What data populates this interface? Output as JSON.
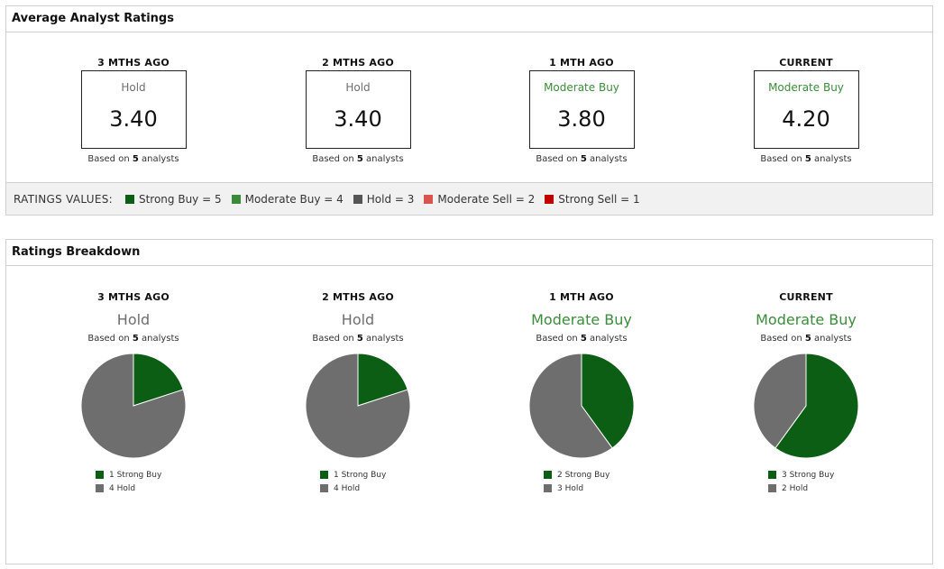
{
  "avg_panel": {
    "title": "Average Analyst Ratings",
    "periods": [
      {
        "label": "3 MTHS AGO",
        "rating": "Hold",
        "value": "3.40",
        "based_pre": "Based on",
        "count": "5",
        "based_post": "analysts",
        "color": "#6e6e6e"
      },
      {
        "label": "2 MTHS AGO",
        "rating": "Hold",
        "value": "3.40",
        "based_pre": "Based on",
        "count": "5",
        "based_post": "analysts",
        "color": "#6e6e6e"
      },
      {
        "label": "1 MTH AGO",
        "rating": "Moderate Buy",
        "value": "3.80",
        "based_pre": "Based on",
        "count": "5",
        "based_post": "analysts",
        "color": "#3b8c3b"
      },
      {
        "label": "CURRENT",
        "rating": "Moderate Buy",
        "value": "4.20",
        "based_pre": "Based on",
        "count": "5",
        "based_post": "analysts",
        "color": "#3b8c3b"
      }
    ],
    "legend_title": "RATINGS VALUES:",
    "legend": [
      {
        "label": "Strong Buy = 5",
        "color": "#0b5e14"
      },
      {
        "label": "Moderate Buy = 4",
        "color": "#3a8a3a"
      },
      {
        "label": "Hold = 3",
        "color": "#555555"
      },
      {
        "label": "Moderate Sell = 2",
        "color": "#d9534f"
      },
      {
        "label": "Strong Sell = 1",
        "color": "#c00000"
      }
    ]
  },
  "breakdown_panel": {
    "title": "Ratings Breakdown",
    "periods": [
      {
        "label": "3 MTHS AGO",
        "rating": "Hold",
        "based_pre": "Based on",
        "count": "5",
        "based_post": "analysts",
        "strong_buy": "1 Strong Buy",
        "hold": "4 Hold"
      },
      {
        "label": "2 MTHS AGO",
        "rating": "Hold",
        "based_pre": "Based on",
        "count": "5",
        "based_post": "analysts",
        "strong_buy": "1 Strong Buy",
        "hold": "4 Hold"
      },
      {
        "label": "1 MTH AGO",
        "rating": "Moderate Buy",
        "based_pre": "Based on",
        "count": "5",
        "based_post": "analysts",
        "strong_buy": "2 Strong Buy",
        "hold": "3 Hold"
      },
      {
        "label": "CURRENT",
        "rating": "Moderate Buy",
        "based_pre": "Based on",
        "count": "5",
        "based_post": "analysts",
        "strong_buy": "3 Strong Buy",
        "hold": "2 Hold"
      }
    ]
  },
  "colors": {
    "strong_buy": "#0b5e14",
    "hold": "#6e6e6e",
    "green_text": "#3b8c3b",
    "grey_text": "#6e6e6e"
  },
  "chart_data": [
    {
      "type": "pie",
      "categories": [
        "Strong Buy",
        "Hold"
      ],
      "values": [
        1,
        4
      ]
    },
    {
      "type": "pie",
      "categories": [
        "Strong Buy",
        "Hold"
      ],
      "values": [
        1,
        4
      ]
    },
    {
      "type": "pie",
      "categories": [
        "Strong Buy",
        "Hold"
      ],
      "values": [
        2,
        3
      ]
    },
    {
      "type": "pie",
      "categories": [
        "Strong Buy",
        "Hold"
      ],
      "values": [
        3,
        2
      ]
    }
  ]
}
